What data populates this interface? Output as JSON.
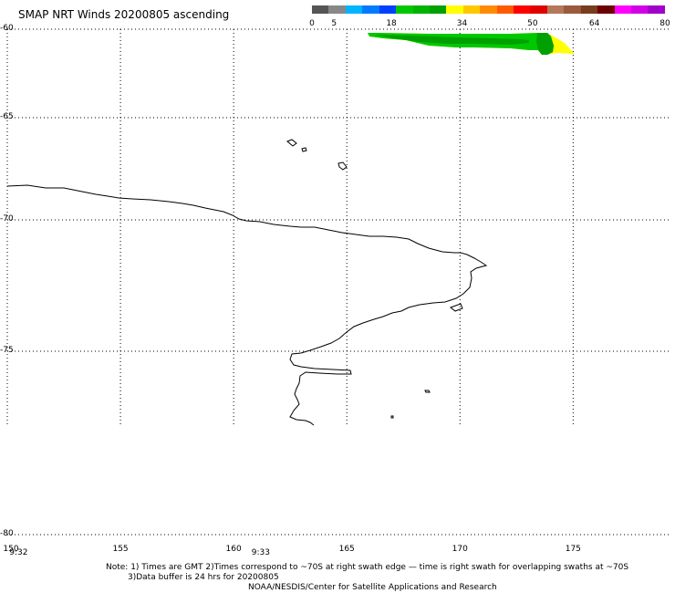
{
  "title": "SMAP NRT Winds 20200805 ascending",
  "colorbar": {
    "segments": [
      "#555555",
      "#888888",
      "#00b4ff",
      "#007aff",
      "#0040ff",
      "#00c800",
      "#00b400",
      "#00a000",
      "#ffff00",
      "#ffc800",
      "#ff8c00",
      "#ff5a00",
      "#ff0000",
      "#e10000",
      "#b4785a",
      "#9b5a3c",
      "#783c1e",
      "#6e0000",
      "#ff00ff",
      "#d200e6",
      "#a000c8"
    ],
    "ticks": [
      {
        "value": "0",
        "pos": 0.0
      },
      {
        "value": "5",
        "pos": 0.0625
      },
      {
        "value": "18",
        "pos": 0.225
      },
      {
        "value": "34",
        "pos": 0.425
      },
      {
        "value": "50",
        "pos": 0.625
      },
      {
        "value": "64",
        "pos": 0.8
      },
      {
        "value": "80",
        "pos": 1.0
      }
    ]
  },
  "axes": {
    "lat_ticks": [
      {
        "label": "-60",
        "lat": -60
      },
      {
        "label": "-65",
        "lat": -65
      },
      {
        "label": "-70",
        "lat": -70
      },
      {
        "label": "-75",
        "lat": -75
      },
      {
        "label": "-80",
        "lat": -80
      }
    ],
    "lon_ticks": [
      {
        "label": "150",
        "lon": 150
      },
      {
        "label": "155",
        "lon": 155
      },
      {
        "label": "160",
        "lon": 160
      },
      {
        "label": "165",
        "lon": 165
      },
      {
        "label": "170",
        "lon": 170
      },
      {
        "label": "175",
        "lon": 175
      }
    ],
    "lon_range": [
      150,
      179.5
    ],
    "lat_range": [
      -80,
      -60
    ]
  },
  "swath_times": [
    {
      "label": "9:32",
      "lon": 150.5
    },
    {
      "label": "9:33",
      "lon": 161.2
    }
  ],
  "notes": {
    "line1": "Note: 1) Times are GMT 2)Times correspond to ~70S at right swath edge — time is right swath for overlapping swaths at ~70S",
    "line2": "3)Data buffer is 24 hrs for 20200805",
    "line3": "NOAA/NESDIS/Center for Satellite Applications and Research"
  },
  "wind_colors": {
    "green_dark": "#00a000",
    "green": "#00c800",
    "yellow": "#ffff00",
    "coast": "#000000",
    "grid": "#000000"
  }
}
